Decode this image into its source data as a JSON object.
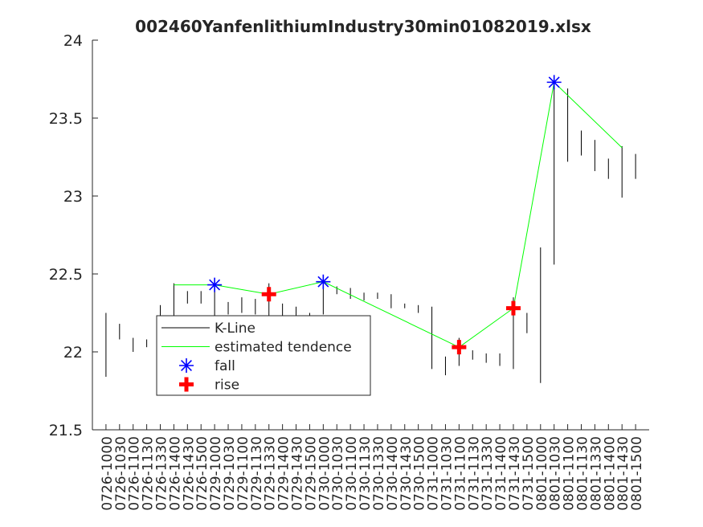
{
  "chart_data": {
    "type": "kline",
    "title": "002460YanfenlithiumIndustry30min01082019.xlsx",
    "categories": [
      "0726-1000",
      "0726-1030",
      "0726-1100",
      "0726-1130",
      "0726-1330",
      "0726-1400",
      "0726-1430",
      "0726-1500",
      "0729-1000",
      "0729-1030",
      "0729-1100",
      "0729-1130",
      "0729-1330",
      "0729-1400",
      "0729-1430",
      "0729-1500",
      "0730-1000",
      "0730-1030",
      "0730-1100",
      "0730-1130",
      "0730-1330",
      "0730-1400",
      "0730-1430",
      "0730-1500",
      "0731-1000",
      "0731-1030",
      "0731-1100",
      "0731-1130",
      "0731-1330",
      "0731-1400",
      "0731-1430",
      "0731-1500",
      "0801-1000",
      "0801-1030",
      "0801-1100",
      "0801-1130",
      "0801-1330",
      "0801-1400",
      "0801-1430",
      "0801-1500"
    ],
    "xlim": [
      0,
      41
    ],
    "ylim": [
      21.5,
      24
    ],
    "yticks": [
      21.5,
      22,
      22.5,
      23,
      23.5,
      24
    ],
    "series": [
      {
        "name": "K-Line",
        "color": "#000000",
        "kind": "range",
        "high": [
          22.25,
          22.18,
          22.09,
          22.08,
          22.3,
          22.44,
          22.39,
          22.39,
          22.44,
          22.32,
          22.35,
          22.34,
          22.44,
          22.31,
          22.29,
          22.25,
          22.47,
          22.42,
          22.41,
          22.38,
          22.38,
          22.37,
          22.31,
          22.3,
          22.29,
          21.97,
          22.09,
          22.01,
          21.99,
          21.99,
          22.35,
          22.25,
          22.67,
          23.74,
          23.69,
          23.42,
          23.36,
          23.24,
          23.32,
          23.27
        ],
        "low": [
          21.84,
          22.08,
          22.0,
          22.03,
          22.15,
          22.2,
          22.31,
          22.31,
          22.22,
          22.24,
          22.25,
          22.24,
          22.2,
          22.22,
          22.21,
          22.2,
          22.24,
          22.37,
          22.34,
          22.33,
          22.34,
          22.28,
          22.28,
          22.25,
          21.89,
          21.85,
          21.91,
          21.95,
          21.93,
          21.91,
          21.89,
          22.12,
          21.8,
          22.56,
          23.22,
          23.26,
          23.16,
          23.11,
          22.99,
          23.11
        ]
      },
      {
        "name": "estimated tendence",
        "color": "#00ff00",
        "kind": "line",
        "values": [
          null,
          null,
          null,
          null,
          null,
          22.43,
          null,
          null,
          22.43,
          null,
          null,
          null,
          22.37,
          null,
          null,
          null,
          22.45,
          null,
          null,
          null,
          null,
          null,
          null,
          null,
          null,
          null,
          22.03,
          null,
          null,
          null,
          22.28,
          null,
          null,
          23.73,
          null,
          null,
          null,
          null,
          23.31,
          null
        ]
      },
      {
        "name": "fall",
        "color": "#0000ff",
        "kind": "star",
        "values": [
          null,
          null,
          null,
          null,
          null,
          null,
          null,
          null,
          22.43,
          null,
          null,
          null,
          null,
          null,
          null,
          null,
          22.45,
          null,
          null,
          null,
          null,
          null,
          null,
          null,
          null,
          null,
          null,
          null,
          null,
          null,
          null,
          null,
          null,
          23.73,
          null,
          null,
          null,
          null,
          null,
          null
        ]
      },
      {
        "name": "rise",
        "color": "#ff0000",
        "kind": "plus",
        "values": [
          null,
          null,
          null,
          null,
          null,
          null,
          null,
          null,
          null,
          null,
          null,
          null,
          22.37,
          null,
          null,
          null,
          null,
          null,
          null,
          null,
          null,
          null,
          null,
          null,
          null,
          null,
          22.03,
          null,
          null,
          null,
          22.28,
          null,
          null,
          null,
          null,
          null,
          null,
          null,
          null,
          null
        ]
      }
    ]
  }
}
